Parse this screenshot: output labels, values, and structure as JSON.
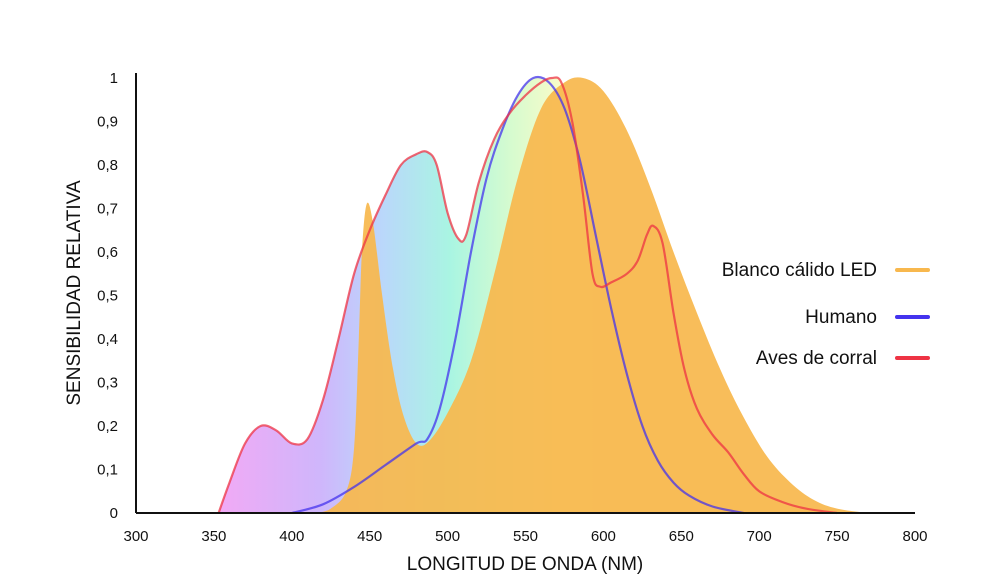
{
  "chart_data": {
    "type": "area",
    "title": "",
    "xlabel": "LONGITUD DE ONDA (NM)",
    "ylabel": "SENSIBILIDAD RELATIVA",
    "xlim": [
      300,
      800
    ],
    "ylim": [
      0,
      1
    ],
    "x_ticks": [
      "300",
      "350",
      "400",
      "450",
      "500",
      "550",
      "600",
      "650",
      "700",
      "750",
      "800"
    ],
    "y_ticks": [
      "0",
      "0,1",
      "0,2",
      "0,3",
      "0,4",
      "0,5",
      "0,6",
      "0,7",
      "0,8",
      "0,9",
      "1"
    ],
    "grid": false,
    "legend_position": "right",
    "series": [
      {
        "name": "Blanco cálido LED",
        "color": "#f8b84e",
        "style": "filled-area",
        "points": [
          [
            415,
            0
          ],
          [
            425,
            0.01
          ],
          [
            435,
            0.05
          ],
          [
            440,
            0.15
          ],
          [
            443,
            0.4
          ],
          [
            445,
            0.6
          ],
          [
            448,
            0.71
          ],
          [
            452,
            0.67
          ],
          [
            458,
            0.5
          ],
          [
            465,
            0.33
          ],
          [
            472,
            0.22
          ],
          [
            480,
            0.16
          ],
          [
            488,
            0.165
          ],
          [
            500,
            0.23
          ],
          [
            515,
            0.35
          ],
          [
            530,
            0.55
          ],
          [
            545,
            0.77
          ],
          [
            560,
            0.93
          ],
          [
            575,
            0.99
          ],
          [
            587,
            1.0
          ],
          [
            600,
            0.97
          ],
          [
            615,
            0.88
          ],
          [
            630,
            0.75
          ],
          [
            645,
            0.6
          ],
          [
            660,
            0.46
          ],
          [
            675,
            0.33
          ],
          [
            690,
            0.22
          ],
          [
            705,
            0.13
          ],
          [
            720,
            0.07
          ],
          [
            735,
            0.03
          ],
          [
            750,
            0.01
          ],
          [
            770,
            0
          ]
        ]
      },
      {
        "name": "Humano",
        "color": "#4433ee",
        "style": "line",
        "points": [
          [
            400,
            0
          ],
          [
            420,
            0.02
          ],
          [
            440,
            0.06
          ],
          [
            460,
            0.11
          ],
          [
            480,
            0.16
          ],
          [
            487,
            0.17
          ],
          [
            495,
            0.24
          ],
          [
            505,
            0.4
          ],
          [
            515,
            0.6
          ],
          [
            525,
            0.77
          ],
          [
            535,
            0.88
          ],
          [
            545,
            0.96
          ],
          [
            555,
            1.0
          ],
          [
            565,
            0.99
          ],
          [
            575,
            0.93
          ],
          [
            585,
            0.81
          ],
          [
            595,
            0.64
          ],
          [
            605,
            0.47
          ],
          [
            615,
            0.32
          ],
          [
            625,
            0.2
          ],
          [
            635,
            0.12
          ],
          [
            645,
            0.07
          ],
          [
            655,
            0.04
          ],
          [
            670,
            0.015
          ],
          [
            690,
            0
          ]
        ]
      },
      {
        "name": "Aves de corral",
        "color": "#ee3344",
        "style": "line",
        "points": [
          [
            353,
            0
          ],
          [
            360,
            0.07
          ],
          [
            370,
            0.16
          ],
          [
            380,
            0.2
          ],
          [
            390,
            0.19
          ],
          [
            400,
            0.16
          ],
          [
            410,
            0.17
          ],
          [
            420,
            0.26
          ],
          [
            430,
            0.4
          ],
          [
            440,
            0.55
          ],
          [
            450,
            0.65
          ],
          [
            460,
            0.73
          ],
          [
            470,
            0.8
          ],
          [
            480,
            0.825
          ],
          [
            487,
            0.83
          ],
          [
            493,
            0.8
          ],
          [
            500,
            0.69
          ],
          [
            507,
            0.63
          ],
          [
            512,
            0.64
          ],
          [
            520,
            0.76
          ],
          [
            530,
            0.86
          ],
          [
            540,
            0.92
          ],
          [
            550,
            0.96
          ],
          [
            560,
            0.99
          ],
          [
            567,
            1.0
          ],
          [
            573,
            0.99
          ],
          [
            580,
            0.9
          ],
          [
            587,
            0.73
          ],
          [
            593,
            0.55
          ],
          [
            598,
            0.52
          ],
          [
            605,
            0.53
          ],
          [
            615,
            0.55
          ],
          [
            622,
            0.58
          ],
          [
            628,
            0.64
          ],
          [
            632,
            0.66
          ],
          [
            638,
            0.62
          ],
          [
            645,
            0.46
          ],
          [
            652,
            0.33
          ],
          [
            660,
            0.24
          ],
          [
            670,
            0.18
          ],
          [
            680,
            0.14
          ],
          [
            690,
            0.09
          ],
          [
            700,
            0.05
          ],
          [
            715,
            0.025
          ],
          [
            730,
            0.01
          ],
          [
            750,
            0
          ]
        ]
      }
    ]
  }
}
